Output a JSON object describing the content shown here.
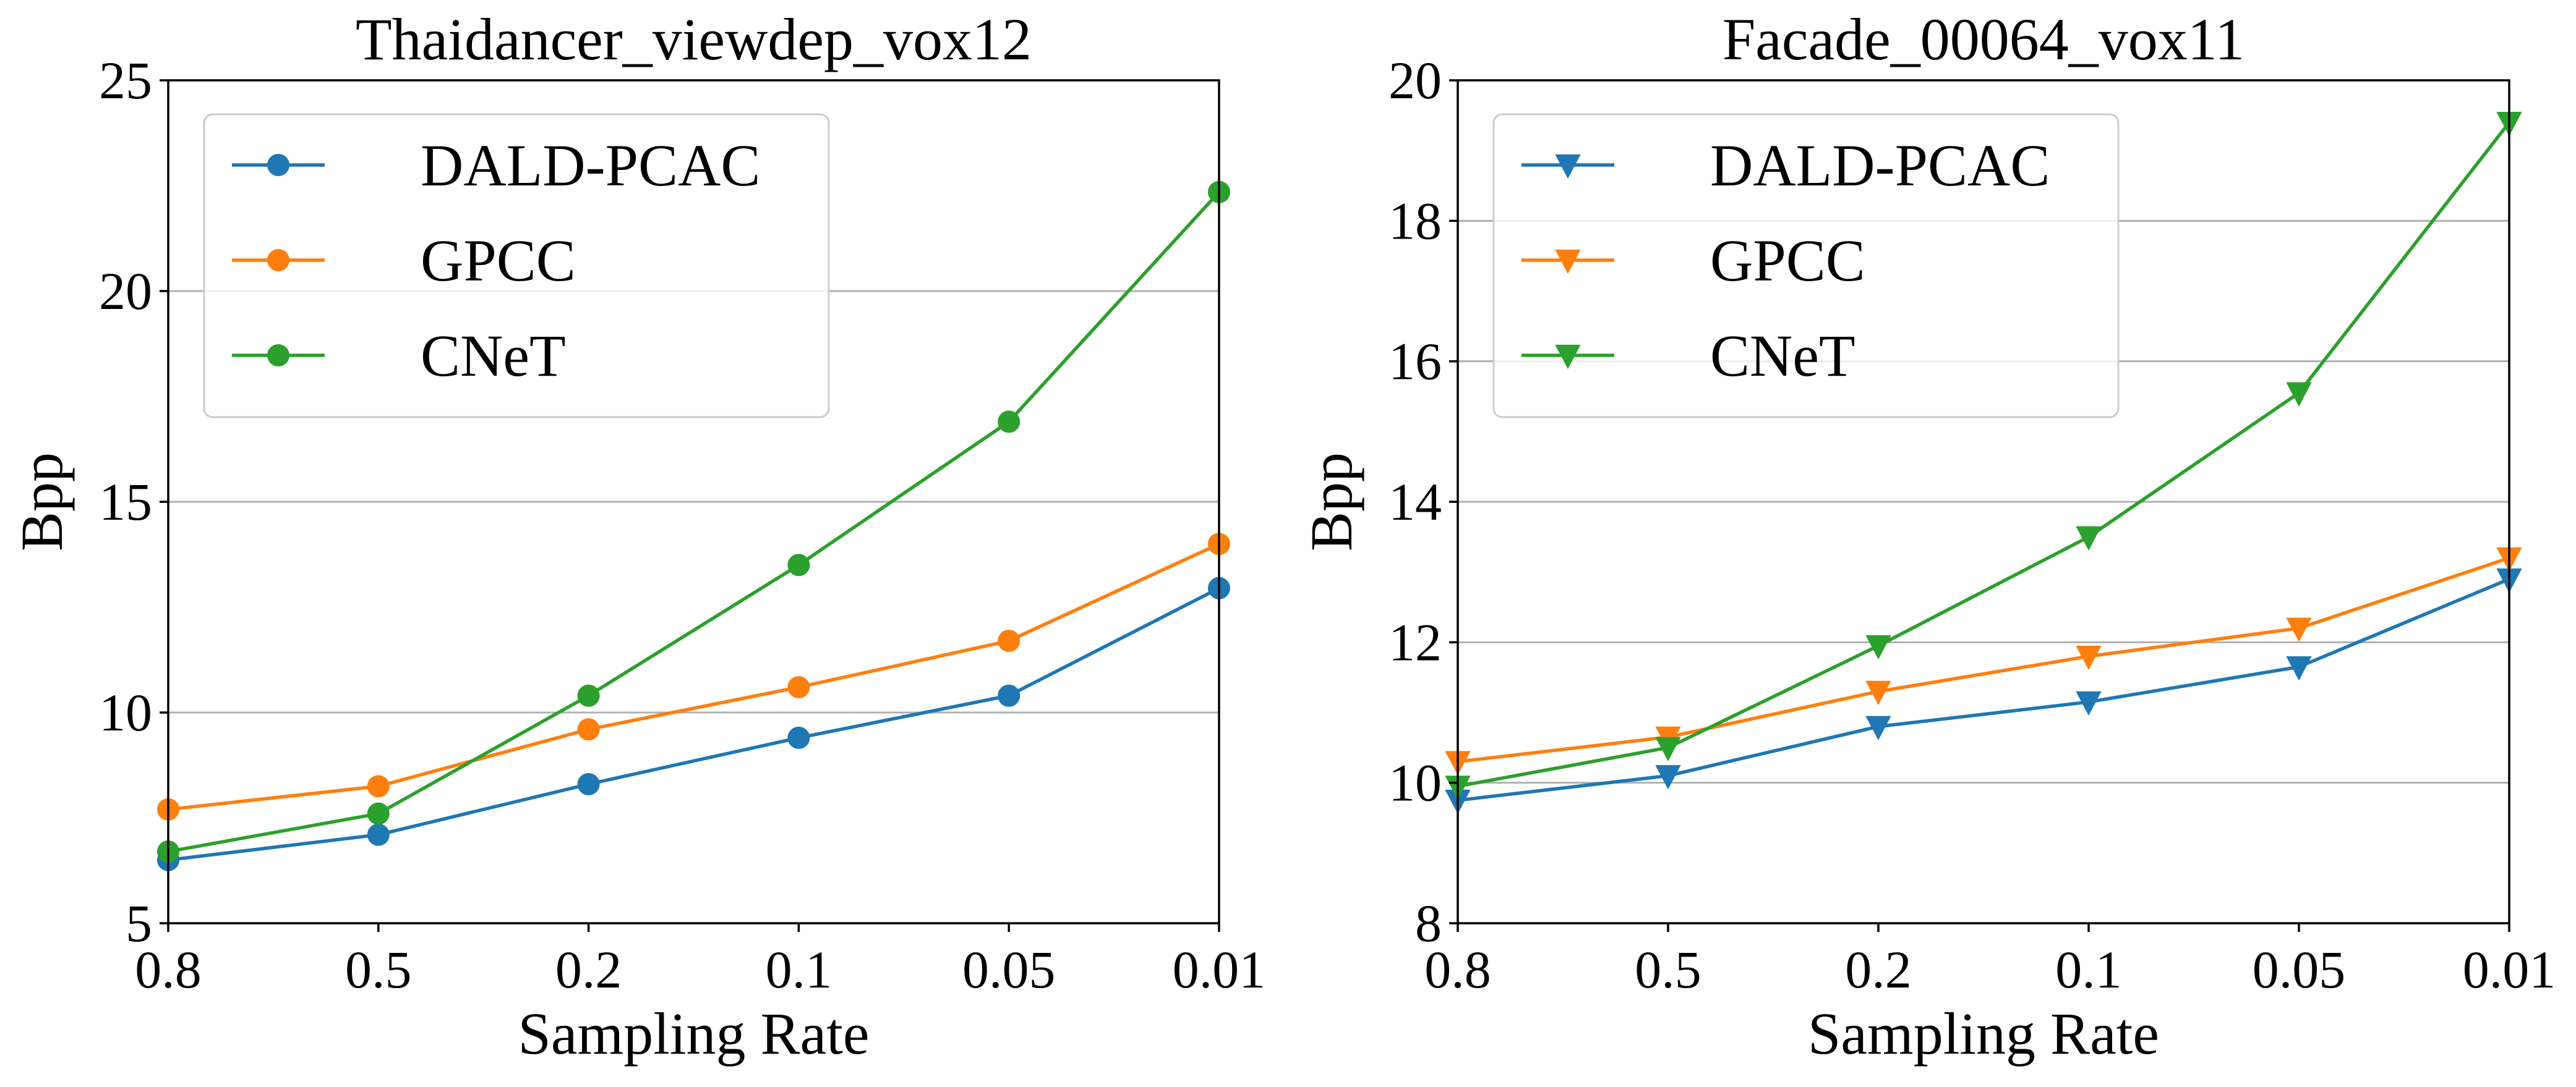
{
  "chart_data": [
    {
      "type": "line",
      "title": "Thaidancer_viewdep_vox12",
      "xlabel": "Sampling Rate",
      "ylabel": "Bpp",
      "categories": [
        "0.8",
        "0.5",
        "0.2",
        "0.1",
        "0.05",
        "0.01"
      ],
      "ylim": [
        5,
        25
      ],
      "yticks": [
        5,
        10,
        15,
        20,
        25
      ],
      "grid": "horizontal",
      "legend": "upper-left",
      "marker": "circle",
      "series": [
        {
          "name": "DALD-PCAC",
          "color": "#1f77b4",
          "values": [
            6.5,
            7.1,
            8.3,
            9.4,
            10.4,
            12.95
          ]
        },
        {
          "name": "GPCC",
          "color": "#ff7f0e",
          "values": [
            7.7,
            8.25,
            9.6,
            10.6,
            11.7,
            14.0
          ]
        },
        {
          "name": "CNeT",
          "color": "#2ca02c",
          "values": [
            6.7,
            7.6,
            10.4,
            13.5,
            16.9,
            22.35
          ]
        }
      ]
    },
    {
      "type": "line",
      "title": "Facade_00064_vox11",
      "xlabel": "Sampling Rate",
      "ylabel": "Bpp",
      "categories": [
        "0.8",
        "0.5",
        "0.2",
        "0.1",
        "0.05",
        "0.01"
      ],
      "ylim": [
        8,
        20
      ],
      "yticks": [
        8,
        10,
        12,
        14,
        16,
        18,
        20
      ],
      "grid": "horizontal",
      "legend": "upper-left",
      "marker": "triangle-down",
      "series": [
        {
          "name": "DALD-PCAC",
          "color": "#1f77b4",
          "values": [
            9.75,
            10.1,
            10.8,
            11.15,
            11.65,
            12.9
          ]
        },
        {
          "name": "GPCC",
          "color": "#ff7f0e",
          "values": [
            10.3,
            10.65,
            11.3,
            11.8,
            12.2,
            13.2
          ]
        },
        {
          "name": "CNeT",
          "color": "#2ca02c",
          "values": [
            9.95,
            10.5,
            11.95,
            13.5,
            15.55,
            19.4
          ]
        }
      ]
    }
  ]
}
